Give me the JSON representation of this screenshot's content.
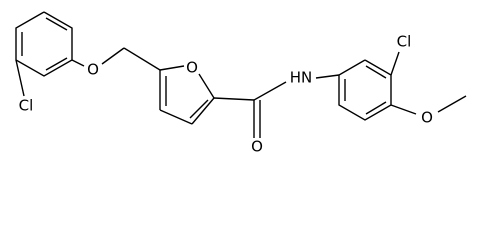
{
  "atoms": [
    {
      "label": "Cl"
    },
    {
      "label": "O"
    },
    {
      "label": "O"
    },
    {
      "label": "HN"
    },
    {
      "label": "Cl"
    },
    {
      "label": "O"
    },
    {
      "label": "O"
    }
  ]
}
